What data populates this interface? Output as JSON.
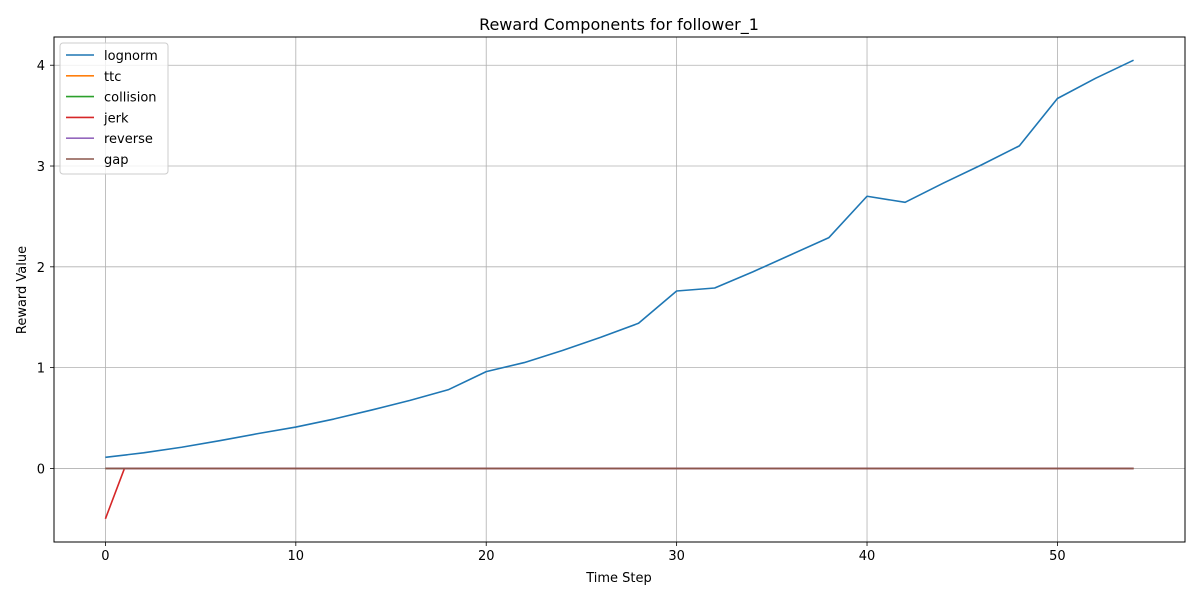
{
  "chart_data": {
    "type": "line",
    "title": "Reward Components for follower_1",
    "xlabel": "Time Step",
    "ylabel": "Reward Value",
    "xlim": [
      -2.7,
      56.7
    ],
    "ylim": [
      -0.73,
      4.28
    ],
    "xticks": [
      0,
      10,
      20,
      30,
      40,
      50
    ],
    "yticks": [
      0,
      1,
      2,
      3,
      4
    ],
    "grid": true,
    "legend_position": "upper-left",
    "series": [
      {
        "name": "lognorm",
        "color": "#1f77b4",
        "x": [
          0,
          2,
          4,
          6,
          8,
          10,
          12,
          14,
          16,
          18,
          20,
          22,
          24,
          26,
          28,
          30,
          32,
          34,
          36,
          38,
          40,
          42,
          44,
          46,
          48,
          50,
          52,
          54
        ],
        "y": [
          0.11,
          0.155,
          0.21,
          0.275,
          0.345,
          0.41,
          0.49,
          0.58,
          0.675,
          0.78,
          0.96,
          1.05,
          1.17,
          1.3,
          1.44,
          1.76,
          1.79,
          1.95,
          2.12,
          2.29,
          2.7,
          2.64,
          2.83,
          3.01,
          3.2,
          3.67,
          3.87,
          4.05
        ]
      },
      {
        "name": "ttc",
        "color": "#ff7f0e",
        "x": [
          0,
          54
        ],
        "y": [
          0,
          0
        ]
      },
      {
        "name": "collision",
        "color": "#2ca02c",
        "x": [
          0,
          54
        ],
        "y": [
          0,
          0
        ]
      },
      {
        "name": "jerk",
        "color": "#d62728",
        "x": [
          0,
          1,
          54
        ],
        "y": [
          -0.5,
          0,
          0
        ]
      },
      {
        "name": "reverse",
        "color": "#9467bd",
        "x": [
          0,
          54
        ],
        "y": [
          0,
          0
        ]
      },
      {
        "name": "gap",
        "color": "#8c564b",
        "x": [
          0,
          54
        ],
        "y": [
          0,
          0
        ]
      }
    ]
  }
}
